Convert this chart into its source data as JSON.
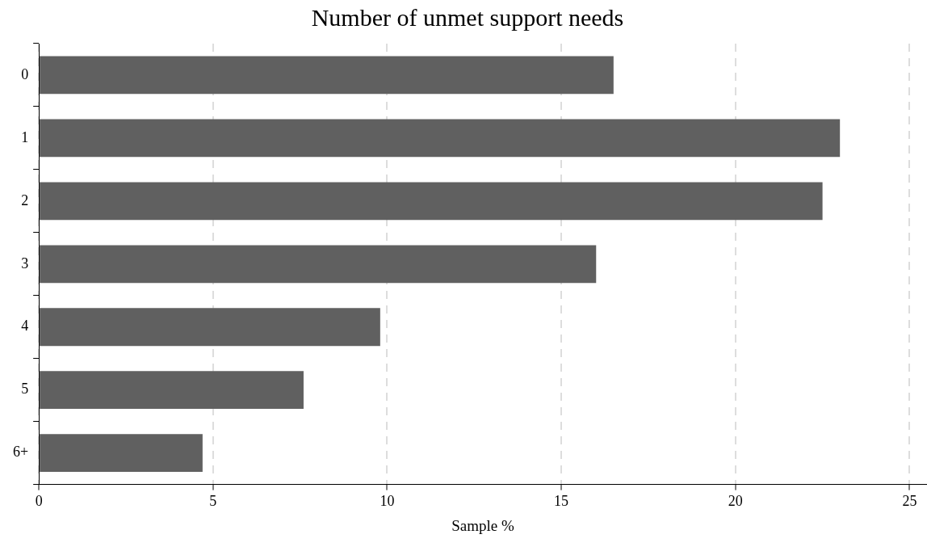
{
  "chart_data": {
    "type": "bar",
    "orientation": "horizontal",
    "title": "Number of unmet support needs",
    "xlabel": "Sample %",
    "categories": [
      "0",
      "1",
      "2",
      "3",
      "4",
      "5",
      "6+"
    ],
    "values": [
      16.5,
      23.0,
      22.5,
      16.0,
      9.8,
      7.6,
      4.7
    ],
    "color": "#606060",
    "xlim": [
      0,
      25.5
    ],
    "xticks": [
      0,
      5,
      10,
      15,
      20,
      25
    ],
    "grid": "x"
  }
}
